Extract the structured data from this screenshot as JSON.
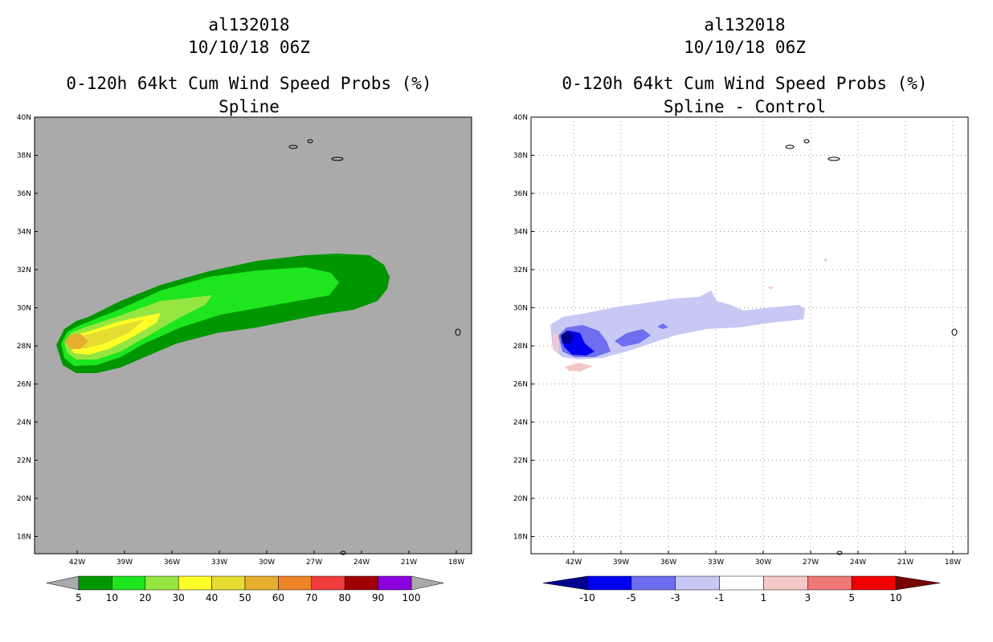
{
  "left_panel": {
    "storm_id": "al132018",
    "datetime": "10/10/18 06Z",
    "product": "0-120h 64kt Cum Wind Speed Probs (%)",
    "subtitle": "Spline",
    "background_color": "#aaaaaa",
    "colorbar": {
      "colors": [
        "#009600",
        "#1ee61e",
        "#96e641",
        "#ffff28",
        "#e6dc32",
        "#e6af2d",
        "#f08228",
        "#f03c3c",
        "#a00000",
        "#8c00dc"
      ],
      "labels": [
        "5",
        "10",
        "20",
        "30",
        "40",
        "50",
        "60",
        "70",
        "80",
        "90",
        "100"
      ]
    }
  },
  "right_panel": {
    "storm_id": "al132018",
    "datetime": "10/10/18 06Z",
    "product": "0-120h 64kt Cum Wind Speed Probs (%)",
    "subtitle": "Spline - Control",
    "background_color": "#ffffff",
    "colorbar": {
      "colors": [
        "#00008c",
        "#0000f0",
        "#6e6ef0",
        "#c8c8f5",
        "#ffffff",
        "#f5c8c8",
        "#f07878",
        "#f00000",
        "#780000"
      ],
      "labels": [
        "-10",
        "-5",
        "-3",
        "-1",
        "1",
        "3",
        "5",
        "10"
      ]
    }
  },
  "map": {
    "lat_labels": [
      "40N",
      "38N",
      "36N",
      "34N",
      "32N",
      "30N",
      "28N",
      "26N",
      "24N",
      "22N",
      "20N",
      "18N"
    ],
    "lon_labels": [
      "42W",
      "39W",
      "36W",
      "33W",
      "30W",
      "27W",
      "24W",
      "21W",
      "18W"
    ]
  }
}
